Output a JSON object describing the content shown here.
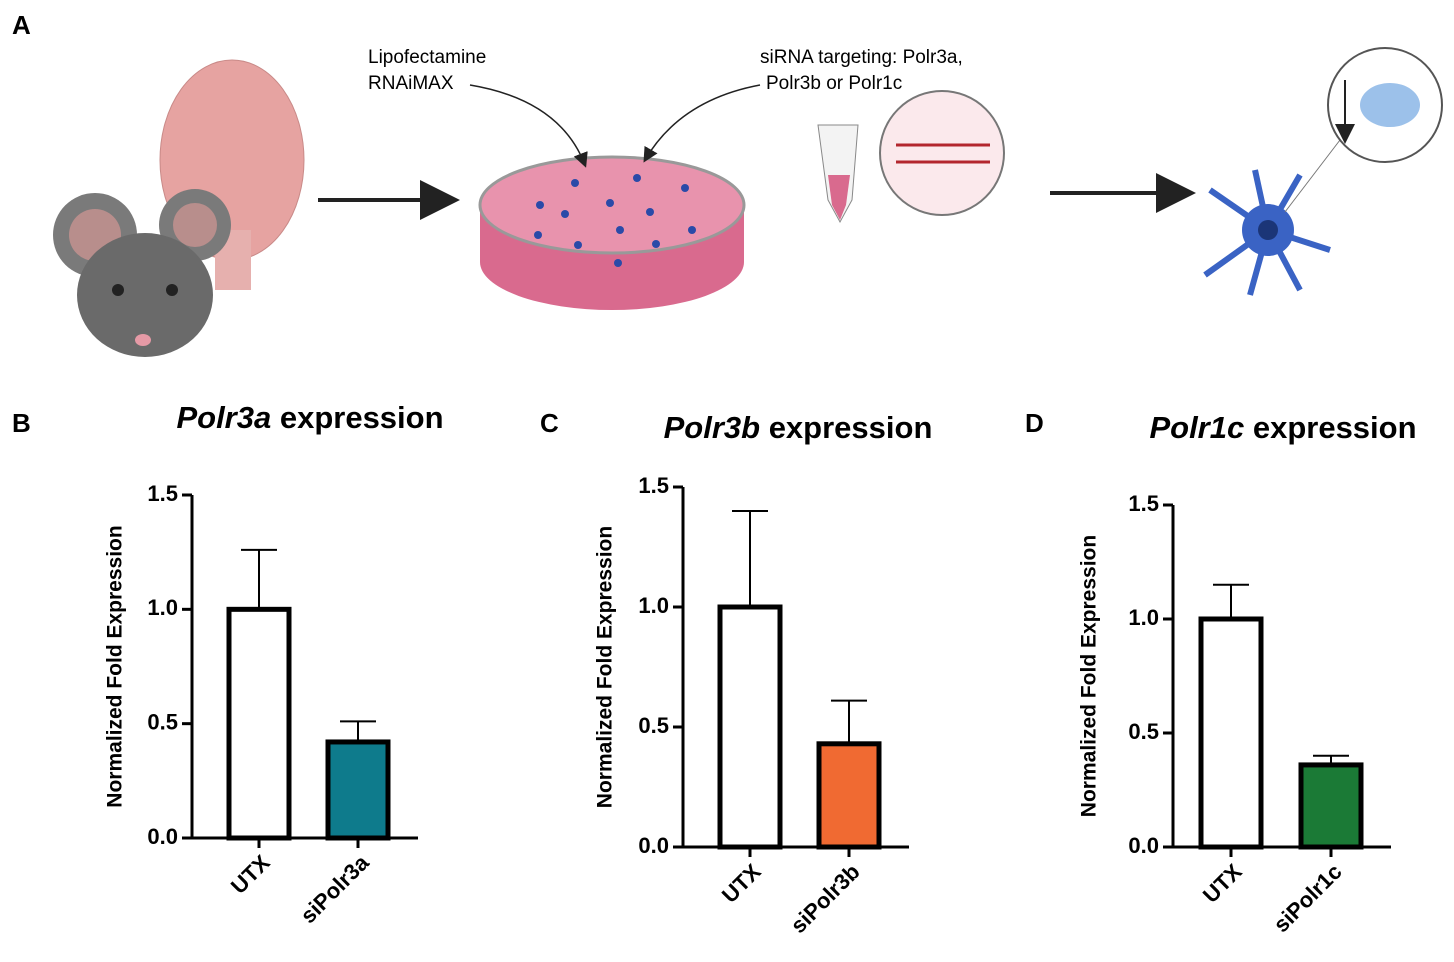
{
  "panel_labels": [
    "A",
    "B",
    "C",
    "D"
  ],
  "panel_a": {
    "reagent": [
      "Lipofectamine",
      "RNAiMAX"
    ],
    "sirna": [
      "siRNA targeting: Polr3a,",
      "Polr3b or Polr1c"
    ]
  },
  "chart_data": [
    {
      "type": "bar",
      "title": "Polr3a expression",
      "ylabel": "Normalized Fold Expression",
      "categories": [
        "UTX",
        "siPolr3a"
      ],
      "values": [
        1.0,
        0.42
      ],
      "errors": [
        0.26,
        0.09
      ],
      "colors": [
        "#ffffff",
        "#0e7b8c"
      ],
      "ylim": [
        0,
        1.5
      ],
      "yticks": [
        {
          "value": 0,
          "label": "0.0"
        },
        0.5,
        {
          "value": 1,
          "label": "1.0"
        },
        1.5
      ]
    },
    {
      "type": "bar",
      "title": "Polr3b expression",
      "ylabel": "Normalized Fold Expression",
      "categories": [
        "UTX",
        "siPolr3b"
      ],
      "values": [
        1.0,
        0.43
      ],
      "errors": [
        0.4,
        0.18
      ],
      "colors": [
        "#ffffff",
        "#f06a32"
      ],
      "ylim": [
        0,
        1.5
      ],
      "yticks": [
        {
          "value": 0,
          "label": "0.0"
        },
        0.5,
        {
          "value": 1,
          "label": "1.0"
        },
        1.5
      ]
    },
    {
      "type": "bar",
      "title": "Polr1c expression",
      "ylabel": "Normalized Fold Expression",
      "categories": [
        "UTX",
        "siPolr1c"
      ],
      "values": [
        1.0,
        0.36
      ],
      "errors": [
        0.15,
        0.04
      ],
      "colors": [
        "#ffffff",
        "#1b7a36"
      ],
      "ylim": [
        0,
        1.5
      ],
      "yticks": [
        {
          "value": 0,
          "label": "0.0"
        },
        0.5,
        {
          "value": 1,
          "label": "1.0"
        },
        1.5
      ]
    }
  ]
}
